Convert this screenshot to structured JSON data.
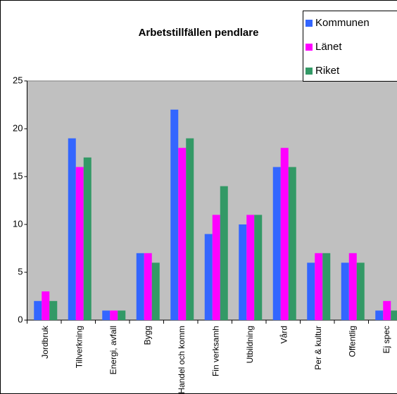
{
  "chart_data": {
    "type": "bar",
    "title": "Arbetstillfällen pendlare",
    "categories": [
      "Jordbruk",
      "Tillverkning",
      "Energi, avfall",
      "Bygg",
      "Handel och komm",
      "Fin verksamh",
      "Utbildning",
      "Vård",
      "Per & kultur",
      "Offentlig",
      "Ej spec"
    ],
    "series": [
      {
        "name": "Kommunen",
        "color": "#3366ff",
        "values": [
          2,
          19,
          1,
          7,
          22,
          9,
          10,
          16,
          6,
          6,
          1
        ]
      },
      {
        "name": "Länet",
        "color": "#ff00ff",
        "values": [
          3,
          16,
          1,
          7,
          18,
          11,
          11,
          18,
          7,
          7,
          2
        ]
      },
      {
        "name": "Riket",
        "color": "#339966",
        "values": [
          2,
          17,
          1,
          6,
          19,
          14,
          11,
          16,
          7,
          6,
          1
        ]
      }
    ],
    "ylim": [
      0,
      25
    ],
    "yticks": [
      0,
      5,
      10,
      15,
      20,
      25
    ],
    "grid": false,
    "legend": "top-right"
  }
}
